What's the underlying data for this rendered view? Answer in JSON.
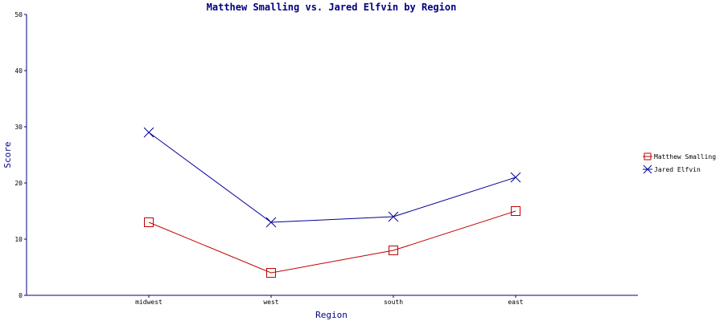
{
  "chart_data": {
    "type": "line",
    "title": "Matthew Smalling vs. Jared Elfvin by Region",
    "xlabel": "Region",
    "ylabel": "Score",
    "categories": [
      "midwest",
      "west",
      "south",
      "east"
    ],
    "ylim": [
      0,
      50
    ],
    "yticks": [
      "0",
      "10",
      "20",
      "30",
      "40",
      "50"
    ],
    "grid": false,
    "legend_position": "right",
    "series": [
      {
        "name": "Matthew Smalling",
        "values": [
          13,
          4,
          8,
          15
        ],
        "color": "#c00000",
        "marker": "square"
      },
      {
        "name": "Jared Elfvin",
        "values": [
          29,
          13,
          14,
          21
        ],
        "color": "#000099",
        "marker": "x"
      }
    ]
  }
}
